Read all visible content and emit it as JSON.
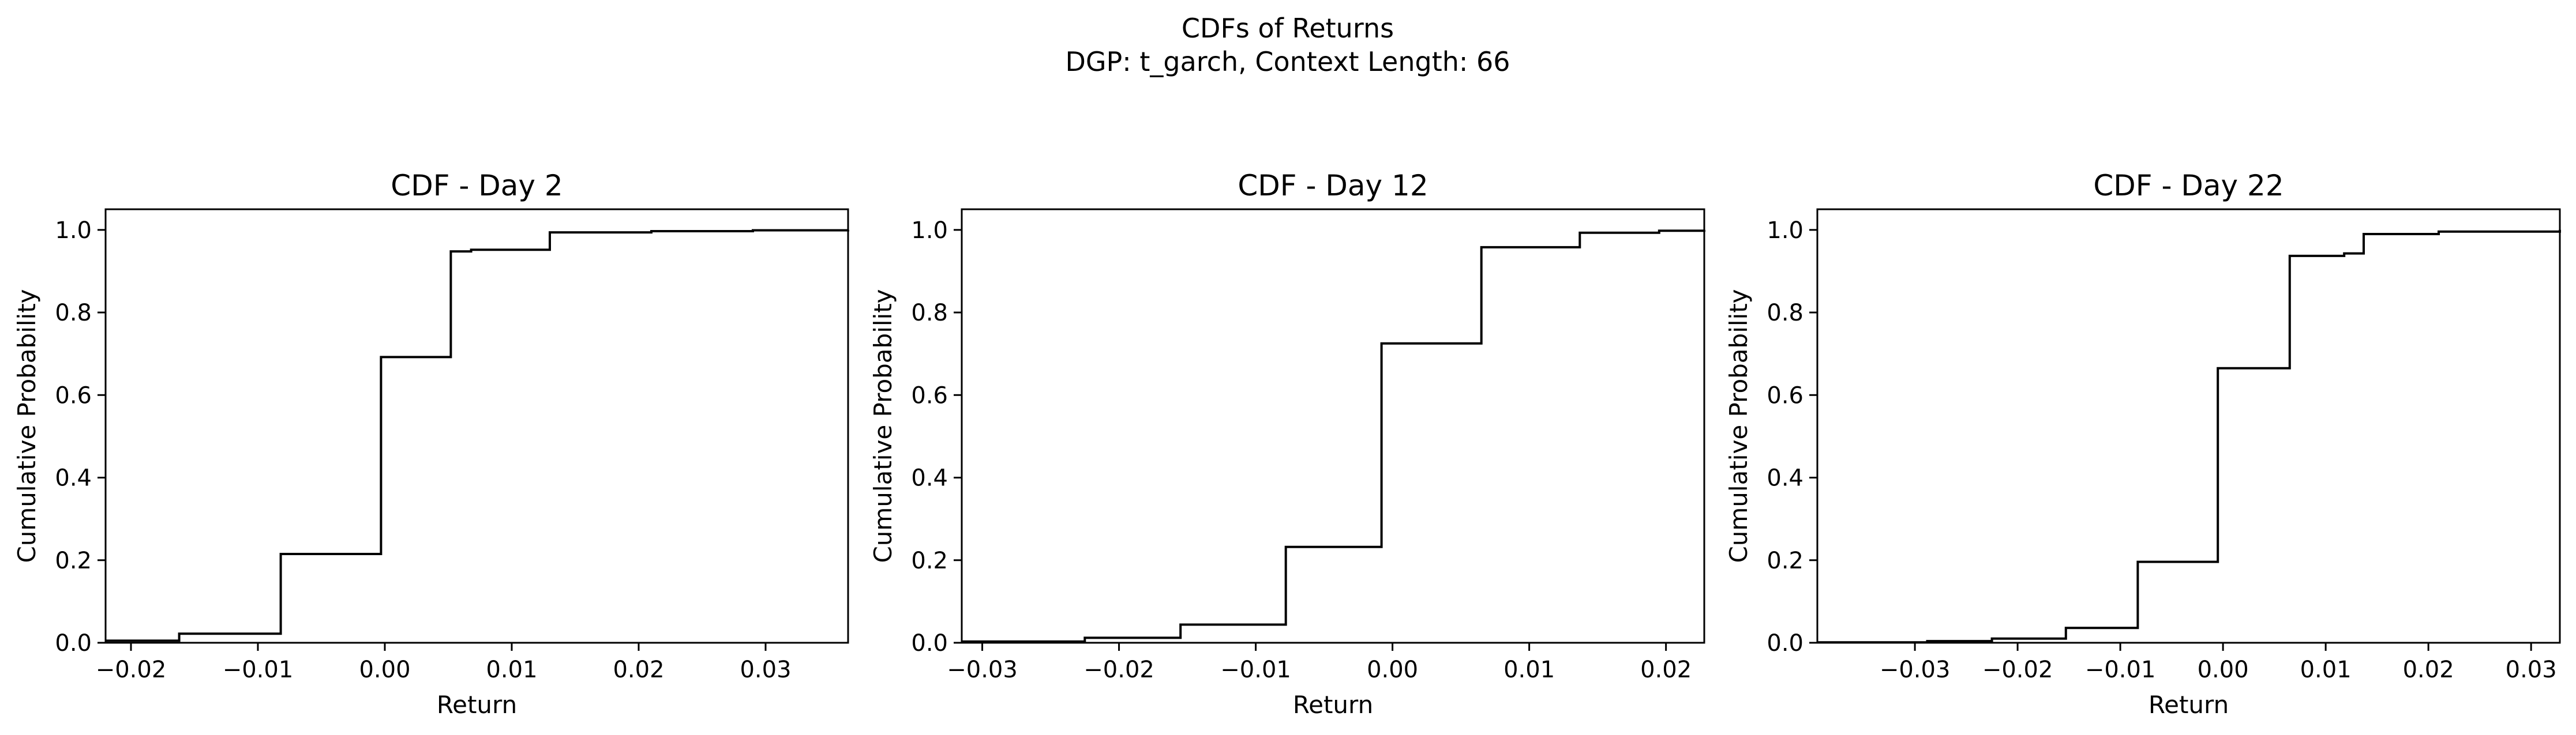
{
  "figure": {
    "title": "CDFs of Returns",
    "subtitle": "DGP: t_garch, Context Length: 66"
  },
  "colors": {
    "line": "#000000",
    "frame": "#000000",
    "background": "#ffffff"
  },
  "chart_data": [
    {
      "type": "line",
      "step": true,
      "title": "CDF - Day 2",
      "xlabel": "Return",
      "ylabel": "Cumulative Probability",
      "xlim": [
        -0.022,
        0.0365
      ],
      "ylim": [
        0.0,
        1.05
      ],
      "xticks": [
        -0.02,
        -0.01,
        0.0,
        0.01,
        0.02,
        0.03
      ],
      "xtick_labels": [
        "−0.02",
        "−0.01",
        "0.00",
        "0.01",
        "0.02",
        "0.03"
      ],
      "yticks": [
        0.0,
        0.2,
        0.4,
        0.6,
        0.8,
        1.0
      ],
      "ytick_labels": [
        "0.0",
        "0.2",
        "0.4",
        "0.6",
        "0.8",
        "1.0"
      ],
      "grid": false,
      "x": [
        -0.022,
        -0.0162,
        -0.0082,
        -0.0003,
        0.0052,
        0.0068,
        0.013,
        0.021,
        0.029,
        0.0365
      ],
      "y": [
        0.005,
        0.022,
        0.215,
        0.692,
        0.948,
        0.952,
        0.994,
        0.997,
        0.999,
        1.0
      ]
    },
    {
      "type": "line",
      "step": true,
      "title": "CDF - Day 12",
      "xlabel": "Return",
      "ylabel": "Cumulative Probability",
      "xlim": [
        -0.0315,
        0.0228
      ],
      "ylim": [
        0.0,
        1.05
      ],
      "xticks": [
        -0.03,
        -0.02,
        -0.01,
        0.0,
        0.01,
        0.02
      ],
      "xtick_labels": [
        "−0.03",
        "−0.02",
        "−0.01",
        "0.00",
        "0.01",
        "0.02"
      ],
      "yticks": [
        0.0,
        0.2,
        0.4,
        0.6,
        0.8,
        1.0
      ],
      "ytick_labels": [
        "0.0",
        "0.2",
        "0.4",
        "0.6",
        "0.8",
        "1.0"
      ],
      "grid": false,
      "x": [
        -0.0315,
        -0.0225,
        -0.0155,
        -0.0078,
        -0.0008,
        0.0065,
        0.0137,
        0.0195,
        0.0228
      ],
      "y": [
        0.003,
        0.012,
        0.044,
        0.232,
        0.725,
        0.958,
        0.993,
        0.998,
        1.0
      ]
    },
    {
      "type": "line",
      "step": true,
      "title": "CDF - Day 22",
      "xlabel": "Return",
      "ylabel": "Cumulative Probability",
      "xlim": [
        -0.0395,
        0.0328
      ],
      "ylim": [
        0.0,
        1.05
      ],
      "xticks": [
        -0.03,
        -0.02,
        -0.01,
        0.0,
        0.01,
        0.02,
        0.03
      ],
      "xtick_labels": [
        "−0.03",
        "−0.02",
        "−0.01",
        "0.00",
        "0.01",
        "0.02",
        "0.03"
      ],
      "yticks": [
        0.0,
        0.2,
        0.4,
        0.6,
        0.8,
        1.0
      ],
      "ytick_labels": [
        "0.0",
        "0.2",
        "0.4",
        "0.6",
        "0.8",
        "1.0"
      ],
      "grid": false,
      "x": [
        -0.0395,
        -0.0288,
        -0.0225,
        -0.0153,
        -0.0083,
        -0.0005,
        0.0065,
        0.0118,
        0.0137,
        0.021,
        0.0328
      ],
      "y": [
        0.001,
        0.004,
        0.01,
        0.036,
        0.196,
        0.665,
        0.937,
        0.943,
        0.99,
        0.996,
        1.0
      ]
    }
  ]
}
